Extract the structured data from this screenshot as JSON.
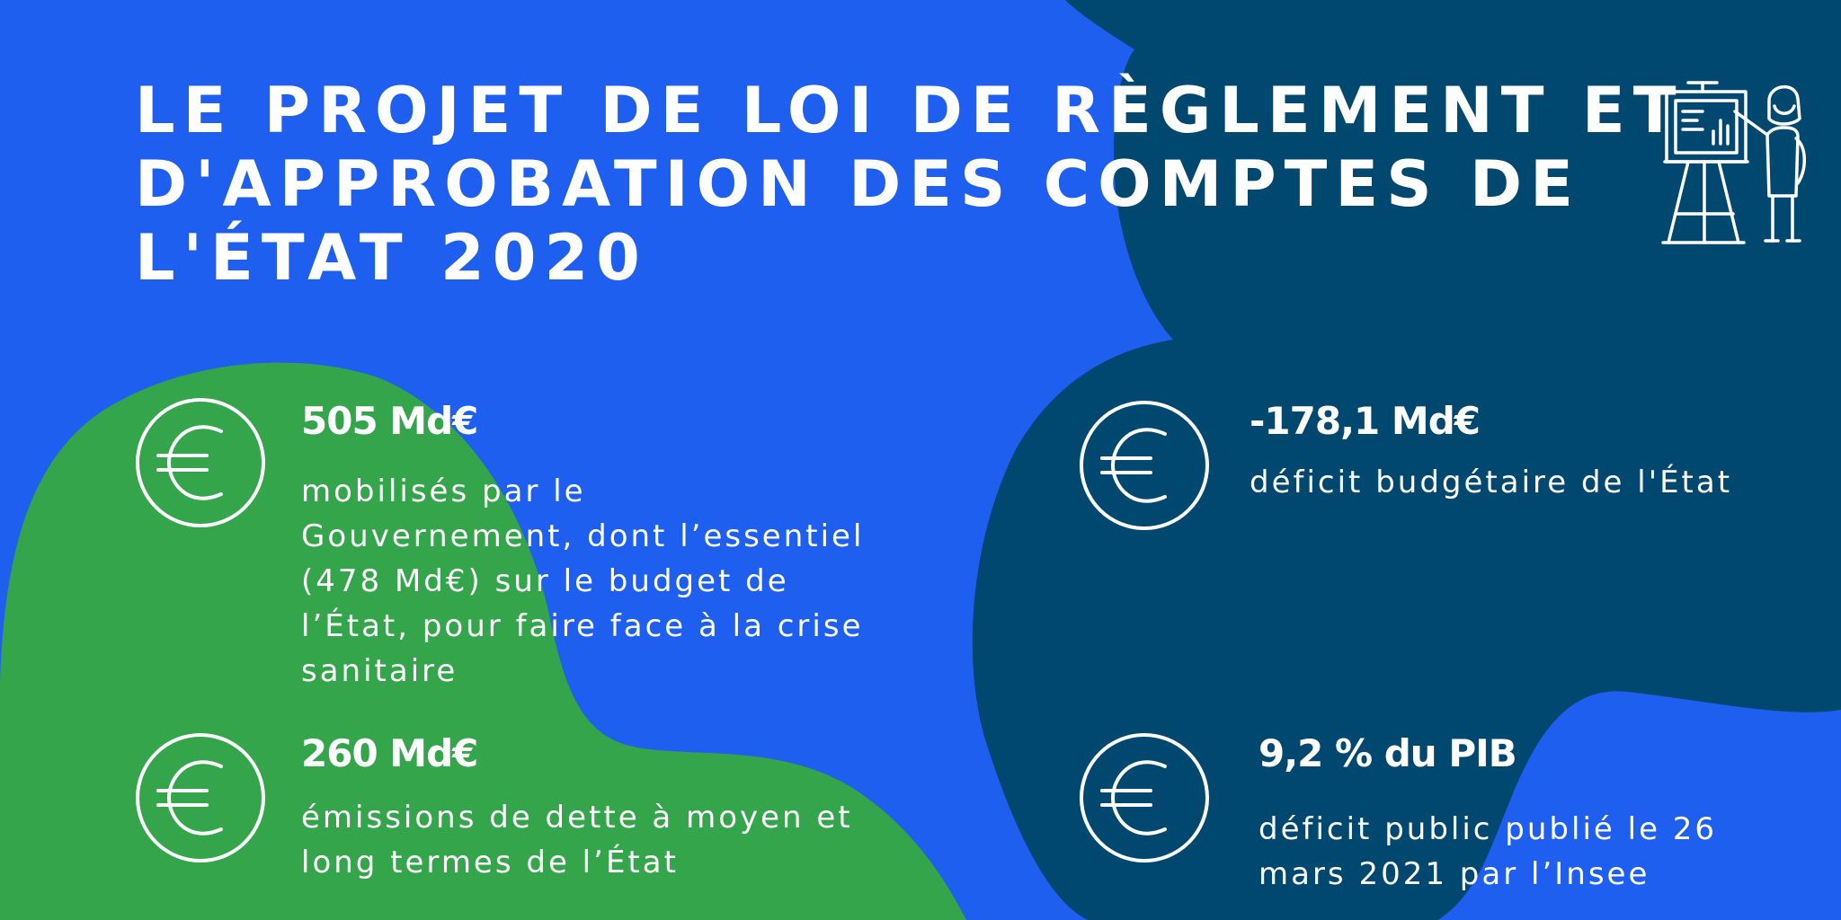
{
  "title": {
    "lines": [
      "LE PROJET DE LOI DE RÈGLEMENT ET",
      "D'APPROBATION DES COMPTES DE",
      "L'ÉTAT 2020"
    ]
  },
  "colors": {
    "background_blue": "#1f5ff0",
    "dark_navy": "#00486f",
    "green": "#34a54a",
    "text": "#ffffff"
  },
  "icons": {
    "header": "presenter-whiteboard-icon",
    "stat": "euro-coin-icon"
  },
  "stats": [
    {
      "value": "505 Md€",
      "description": "mobilisés par le Gouvernement, dont l’essentiel (478 Md€) sur le budget de l’État, pour faire face à la crise sanitaire"
    },
    {
      "value": "260 Md€",
      "description": "émissions de dette à moyen et long termes de l’État"
    },
    {
      "value": "-178,1 Md€",
      "description": "déficit budgétaire de l'État"
    },
    {
      "value": "9,2 % du PIB",
      "description": "déficit public publié le 26 mars 2021 par l’Insee"
    }
  ]
}
